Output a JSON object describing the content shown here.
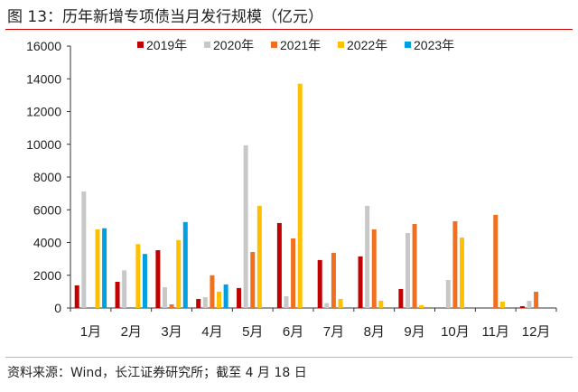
{
  "chart_data": {
    "type": "bar",
    "title": "图 13：历年新增专项债当月发行规模（亿元）",
    "xlabel": "",
    "ylabel": "",
    "ylim": [
      0,
      16000
    ],
    "yticks": [
      0,
      2000,
      4000,
      6000,
      8000,
      10000,
      12000,
      14000,
      16000
    ],
    "legend_position": "top",
    "categories": [
      "1月",
      "2月",
      "3月",
      "4月",
      "5月",
      "6月",
      "7月",
      "8月",
      "9月",
      "10月",
      "11月",
      "12月"
    ],
    "series": [
      {
        "name": "2019年",
        "color": "#c00000",
        "values": [
          1380,
          1600,
          3530,
          550,
          1220,
          5190,
          2930,
          3150,
          1160,
          0,
          0,
          110
        ]
      },
      {
        "name": "2020年",
        "color": "#c8c8c8",
        "values": [
          7120,
          2300,
          1270,
          660,
          9940,
          720,
          300,
          6240,
          4580,
          1710,
          0,
          440
        ]
      },
      {
        "name": "2021年",
        "color": "#f07020",
        "values": [
          0,
          0,
          220,
          2000,
          3420,
          4250,
          3370,
          4800,
          5130,
          5300,
          5690,
          990
        ]
      },
      {
        "name": "2022年",
        "color": "#ffc000",
        "values": [
          4800,
          3900,
          4150,
          1000,
          6240,
          13700,
          550,
          440,
          170,
          4300,
          390,
          0
        ]
      },
      {
        "name": "2023年",
        "color": "#00a0e0",
        "values": [
          4870,
          3300,
          5250,
          1440,
          0,
          0,
          0,
          0,
          0,
          0,
          0,
          0
        ]
      }
    ]
  },
  "source": "资料来源：Wind，长江证券研究所；截至 4 月 18 日"
}
